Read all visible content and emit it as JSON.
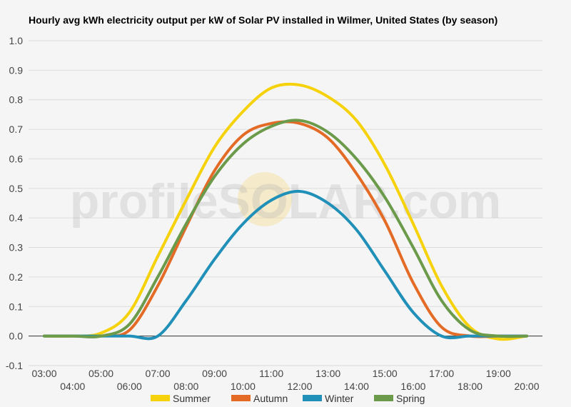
{
  "chart_data": {
    "type": "line",
    "title": "Hourly avg kWh electricity output per kW of Solar PV installed in Wilmer, United States (by season)",
    "x": [
      "03:00",
      "04:00",
      "05:00",
      "06:00",
      "07:00",
      "08:00",
      "09:00",
      "10:00",
      "11:00",
      "12:00",
      "13:00",
      "14:00",
      "15:00",
      "16:00",
      "17:00",
      "18:00",
      "19:00",
      "20:00"
    ],
    "ylim": [
      -0.1,
      1.0
    ],
    "yticks": [
      -0.1,
      0.0,
      0.1,
      0.2,
      0.3,
      0.4,
      0.5,
      0.6,
      0.7,
      0.8,
      0.9,
      1.0
    ],
    "ytick_labels": [
      "-0.1",
      "0.0",
      "0.1",
      "0.2",
      "0.3",
      "0.4",
      "0.5",
      "0.6",
      "0.7",
      "0.8",
      "0.9",
      "1.0"
    ],
    "grid": true,
    "legend_position": "bottom",
    "series": [
      {
        "name": "Summer",
        "color": "#f5d20c",
        "values": [
          0,
          0,
          0.01,
          0.08,
          0.27,
          0.46,
          0.64,
          0.76,
          0.84,
          0.85,
          0.81,
          0.73,
          0.58,
          0.38,
          0.17,
          0.03,
          -0.01,
          0
        ]
      },
      {
        "name": "Autumn",
        "color": "#e46b26",
        "values": [
          0,
          0,
          0,
          0.02,
          0.17,
          0.37,
          0.56,
          0.68,
          0.72,
          0.72,
          0.67,
          0.55,
          0.39,
          0.18,
          0.03,
          0,
          0,
          0
        ]
      },
      {
        "name": "Winter",
        "color": "#2190b8",
        "values": [
          0,
          0,
          0,
          0,
          0,
          0.12,
          0.26,
          0.38,
          0.46,
          0.49,
          0.45,
          0.36,
          0.22,
          0.08,
          0,
          0,
          0,
          0
        ]
      },
      {
        "name": "Spring",
        "color": "#6a9a4a",
        "values": [
          0,
          0,
          0,
          0.04,
          0.2,
          0.38,
          0.54,
          0.65,
          0.71,
          0.73,
          0.69,
          0.6,
          0.47,
          0.3,
          0.12,
          0.02,
          0,
          0
        ]
      }
    ]
  },
  "watermark": {
    "text": "profileSOLAR.com"
  }
}
